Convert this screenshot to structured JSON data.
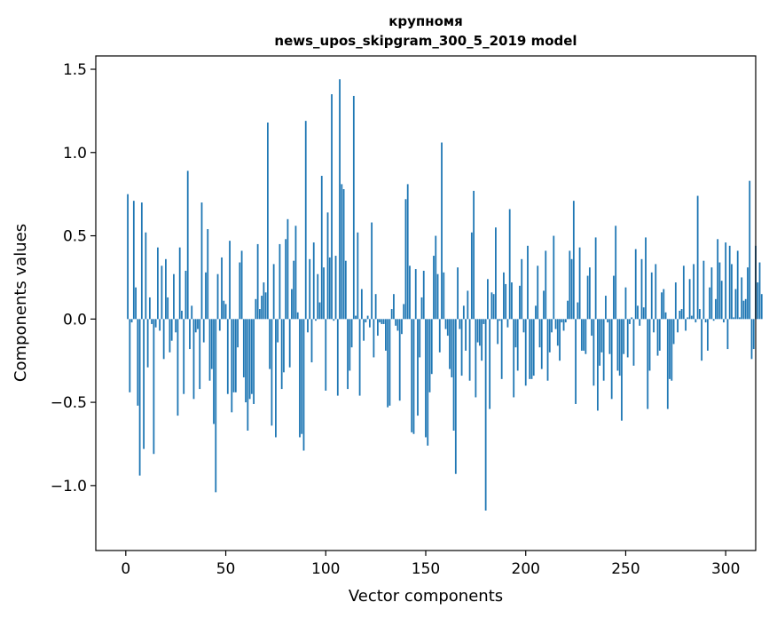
{
  "chart_data": {
    "type": "bar",
    "title": "крупномя",
    "subtitle": "news_upos_skipgram_300_5_2019 model",
    "xlabel": "Vector components",
    "ylabel": "Components values",
    "xlim": [
      -15,
      315
    ],
    "ylim": [
      -1.39,
      1.58
    ],
    "x_ticks": [
      0,
      50,
      100,
      150,
      200,
      250,
      300
    ],
    "x_tick_labels": [
      "0",
      "50",
      "100",
      "150",
      "200",
      "250",
      "300"
    ],
    "y_ticks": [
      -1.0,
      -0.5,
      0.0,
      0.5,
      1.0,
      1.5
    ],
    "y_tick_labels": [
      "−1.0",
      "−0.5",
      "0.0",
      "0.5",
      "1.0",
      "1.5"
    ],
    "bar_color": "#1f77b4",
    "grid": false,
    "series": [
      {
        "values": [
          0.75,
          -0.44,
          -0.02,
          0.71,
          0.19,
          -0.52,
          -0.94,
          0.7,
          -0.78,
          0.52,
          -0.29,
          0.13,
          -0.03,
          -0.81,
          -0.05,
          0.43,
          -0.07,
          0.32,
          -0.24,
          0.36,
          0.13,
          -0.2,
          -0.13,
          0.27,
          -0.08,
          -0.58,
          0.43,
          0.05,
          -0.45,
          0.29,
          0.89,
          -0.18,
          0.08,
          -0.48,
          -0.08,
          -0.06,
          -0.42,
          0.7,
          -0.14,
          0.28,
          0.54,
          -0.37,
          -0.3,
          -0.63,
          -1.04,
          0.27,
          -0.07,
          0.37,
          0.11,
          0.09,
          -0.45,
          0.47,
          -0.56,
          -0.44,
          -0.44,
          -0.17,
          0.34,
          0.41,
          -0.35,
          -0.5,
          -0.67,
          -0.48,
          -0.45,
          -0.51,
          0.12,
          0.45,
          0.06,
          0.14,
          0.22,
          0.16,
          1.18,
          -0.3,
          -0.64,
          0.33,
          -0.71,
          -0.14,
          0.45,
          -0.42,
          -0.32,
          0.48,
          0.6,
          -0.29,
          0.18,
          0.35,
          0.56,
          0.04,
          -0.71,
          -0.69,
          -0.79,
          1.19,
          -0.08,
          0.36,
          -0.26,
          0.46,
          -0.01,
          0.27,
          0.1,
          0.86,
          0.31,
          -0.43,
          0.64,
          0.37,
          1.35,
          -0.01,
          0.38,
          -0.46,
          1.44,
          0.81,
          0.78,
          0.35,
          -0.42,
          -0.31,
          -0.17,
          1.34,
          0.02,
          0.52,
          -0.46,
          0.18,
          -0.13,
          -0.02,
          0.02,
          -0.05,
          0.58,
          -0.23,
          0.15,
          -0.1,
          -0.02,
          -0.03,
          -0.03,
          -0.19,
          -0.53,
          -0.52,
          0.06,
          0.15,
          -0.04,
          -0.07,
          -0.49,
          -0.09,
          0.09,
          0.72,
          0.81,
          0.32,
          -0.68,
          -0.69,
          0.3,
          -0.58,
          -0.23,
          0.13,
          0.29,
          -0.71,
          -0.76,
          -0.44,
          -0.33,
          0.38,
          0.5,
          0.27,
          -0.2,
          1.06,
          0.28,
          -0.06,
          -0.1,
          -0.3,
          -0.35,
          -0.67,
          -0.93,
          0.31,
          -0.06,
          -0.34,
          0.08,
          -0.19,
          0.17,
          -0.37,
          0.52,
          0.77,
          -0.47,
          -0.14,
          -0.16,
          -0.25,
          -0.03,
          -1.15,
          0.24,
          -0.54,
          0.16,
          0.15,
          0.55,
          -0.15,
          -0.01,
          -0.36,
          0.28,
          0.21,
          -0.05,
          0.66,
          0.22,
          -0.47,
          -0.17,
          -0.31,
          0.2,
          0.36,
          -0.08,
          -0.4,
          0.44,
          -0.36,
          -0.36,
          -0.34,
          0.08,
          0.32,
          -0.17,
          -0.3,
          0.17,
          0.41,
          -0.37,
          -0.2,
          -0.08,
          0.5,
          -0.06,
          -0.16,
          -0.25,
          -0.02,
          -0.07,
          -0.02,
          0.11,
          0.41,
          0.36,
          0.71,
          -0.51,
          0.1,
          0.43,
          -0.19,
          -0.19,
          -0.21,
          0.26,
          0.31,
          -0.1,
          -0.4,
          0.49,
          -0.55,
          -0.28,
          -0.2,
          -0.37,
          0.14,
          -0.02,
          -0.21,
          -0.48,
          0.26,
          0.56,
          -0.31,
          -0.34,
          -0.61,
          -0.21,
          0.19,
          -0.23,
          -0.03,
          0.01,
          -0.28,
          0.42,
          0.08,
          -0.04,
          0.36,
          0.07,
          0.49,
          -0.54,
          -0.31,
          0.28,
          -0.08,
          0.33,
          -0.22,
          -0.19,
          0.16,
          0.18,
          0.04,
          -0.54,
          -0.36,
          -0.37,
          -0.15,
          0.22,
          -0.08,
          0.05,
          0.06,
          0.32,
          -0.07,
          0.01,
          0.24,
          0.02,
          0.33,
          -0.02,
          0.74,
          0.06,
          -0.25,
          0.35,
          -0.02,
          -0.19,
          0.19,
          0.31,
          -0.01,
          0.12,
          0.48,
          0.34,
          0.23,
          -0.02,
          0.46,
          -0.18,
          0.44,
          0.33,
          0.01,
          0.18,
          0.41,
          0.01,
          0.25,
          0.11,
          0.12,
          0.31,
          0.83,
          -0.24,
          -0.18,
          0.44,
          0.22,
          0.34,
          0.15
        ]
      }
    ]
  }
}
